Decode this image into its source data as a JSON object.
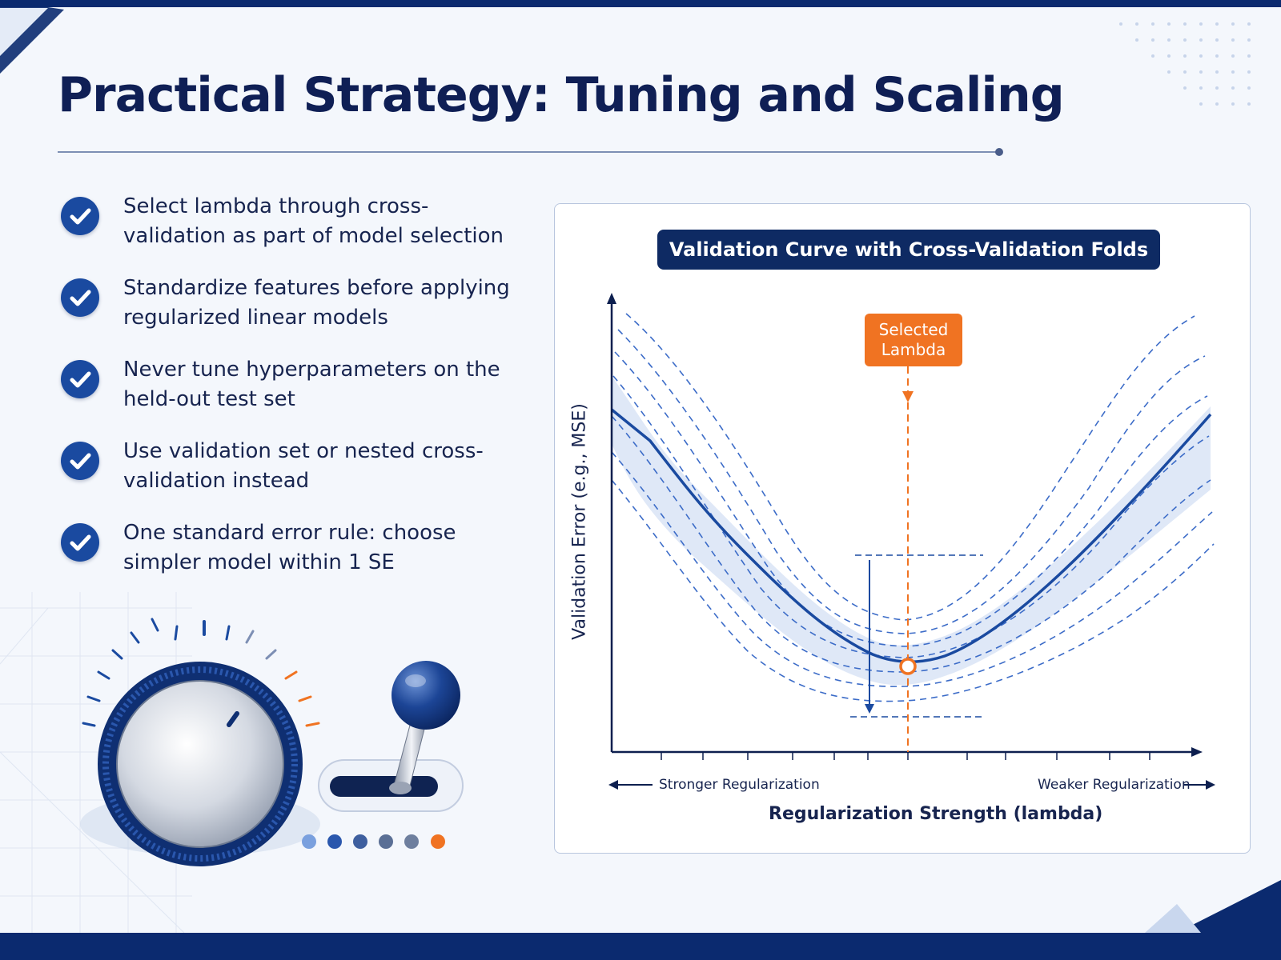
{
  "slide": {
    "title": "Practical Strategy: Tuning and Scaling",
    "bullets": [
      {
        "text": "Select lambda through cross-validation as part of model selection",
        "icon": "check-circle-icon"
      },
      {
        "text": "Standardize features before applying regularized linear models",
        "icon": "check-circle-icon"
      },
      {
        "text": "Never tune hyperparameters on the held-out test set",
        "icon": "check-circle-icon"
      },
      {
        "text": "Use validation set or nested cross-validation instead",
        "icon": "check-circle-icon"
      },
      {
        "text": "One standard error rule: choose simpler model within 1 SE",
        "icon": "check-circle-icon"
      }
    ]
  },
  "chart": {
    "title": "Validation Curve with Cross-Validation Folds",
    "callout": "Selected Lambda",
    "x_axis_title": "Regularization Strength (lambda)",
    "y_axis_title": "Validation Error (e.g., MSE)",
    "left_direction": "Stronger Regularization",
    "right_direction": "Weaker Regularization"
  },
  "colors": {
    "navy": "#0b2a6f",
    "curve": "#1a4aa0",
    "accent": "#f07322",
    "band": "#dbe6f6"
  }
}
